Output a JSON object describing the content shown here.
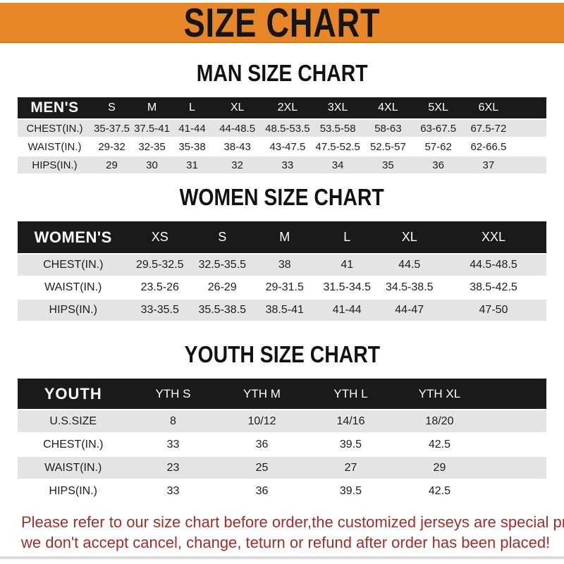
{
  "banner": {
    "title": "SIZE CHART"
  },
  "colors": {
    "banner_bg": "#E8862A",
    "table_header_bg": "#1A1A1A",
    "stripe_gray": "#E4E4E4",
    "footer_red": "#A32D28"
  },
  "sections": [
    {
      "heading": "MAN SIZE CHART",
      "header_label": "MEN'S",
      "columns": [
        "S",
        "M",
        "L",
        "XL",
        "2XL",
        "3XL",
        "4XL",
        "5XL",
        "6XL"
      ],
      "rows": [
        {
          "label": "CHEST(IN.)",
          "values": [
            "35-37.5",
            "37.5-41",
            "41-44",
            "44-48.5",
            "48.5-53.5",
            "53.5-58",
            "58-63",
            "63-67.5",
            "67.5-72"
          ]
        },
        {
          "label": "WAIST(IN.)",
          "values": [
            "29-32",
            "32-35",
            "35-38",
            "38-43",
            "43-47.5",
            "47.5-52.5",
            "52.5-57",
            "57-62",
            "62-66.5"
          ]
        },
        {
          "label": "HIPS(IN.)",
          "values": [
            "29",
            "30",
            "31",
            "32",
            "33",
            "34",
            "35",
            "36",
            "37"
          ]
        }
      ]
    },
    {
      "heading": "WOMEN SIZE CHART",
      "header_label": "WOMEN'S",
      "columns": [
        "XS",
        "S",
        "M",
        "L",
        "XL",
        "XXL"
      ],
      "rows": [
        {
          "label": "CHEST(IN.)",
          "values": [
            "29.5-32.5",
            "32.5-35.5",
            "38",
            "41",
            "44.5",
            "44.5-48.5"
          ]
        },
        {
          "label": "WAIST(IN.)",
          "values": [
            "23.5-26",
            "26-29",
            "29-31.5",
            "31.5-34.5",
            "34.5-38.5",
            "38.5-42.5"
          ]
        },
        {
          "label": "HIPS(IN.)",
          "values": [
            "33-35.5",
            "35.5-38.5",
            "38.5-41",
            "41-44",
            "44-47",
            "47-50"
          ]
        }
      ]
    },
    {
      "heading": "YOUTH SIZE CHART",
      "header_label": "YOUTH",
      "columns": [
        "YTH S",
        "YTH M",
        "YTH L",
        "YTH XL"
      ],
      "rows": [
        {
          "label": "U.S.SIZE",
          "values": [
            "8",
            "10/12",
            "14/16",
            "18/20"
          ]
        },
        {
          "label": "CHEST(IN.)",
          "values": [
            "33",
            "36",
            "39.5",
            "42.5"
          ]
        },
        {
          "label": "WAIST(IN.)",
          "values": [
            "23",
            "25",
            "27",
            "29"
          ]
        },
        {
          "label": "HIPS(IN.)",
          "values": [
            "33",
            "36",
            "39.5",
            "42.5"
          ]
        }
      ]
    }
  ],
  "footer": {
    "lines": [
      "Please refer to our size chart before order,the customized jerseys are special products,",
      "we don't accept cancel, change, teturn or refund after order has been placed!"
    ]
  }
}
